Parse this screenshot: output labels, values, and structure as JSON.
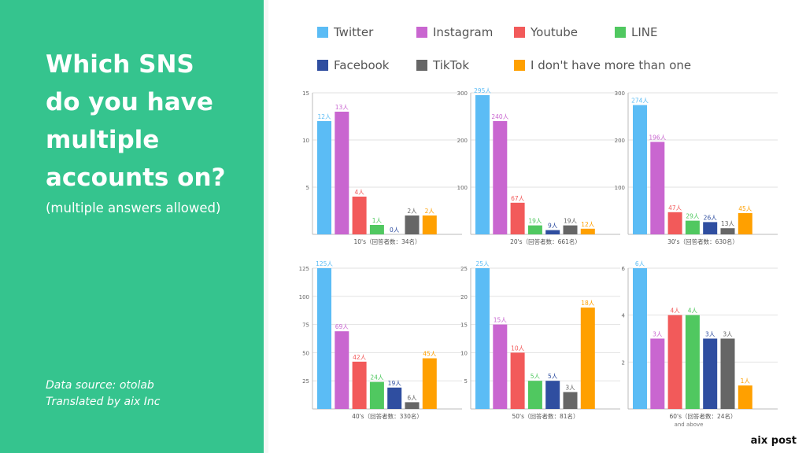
{
  "header": {
    "title_lines": [
      "Which SNS",
      "do you have",
      "multiple",
      "accounts on?"
    ],
    "subtitle": "(multiple answers allowed)",
    "source_lines": [
      "Data source: otolab",
      "Translated by aix Inc"
    ],
    "brand": "aix post"
  },
  "colors": {
    "panel_green": "#35c48e",
    "twitter": "#5bbcf5",
    "instagram": "#c966d0",
    "youtube": "#f25a5a",
    "line": "#50c860",
    "facebook": "#2f4ea0",
    "tiktok": "#666666",
    "none": "#ffa000"
  },
  "legend": [
    {
      "label": "Twitter",
      "color": "#5bbcf5"
    },
    {
      "label": "Instagram",
      "color": "#c966d0"
    },
    {
      "label": "Youtube",
      "color": "#f25a5a"
    },
    {
      "label": "LINE",
      "color": "#50c860"
    },
    {
      "label": "Facebook",
      "color": "#2f4ea0"
    },
    {
      "label": "TikTok",
      "color": "#666666"
    },
    {
      "label": "I don't have more than one",
      "color": "#ffa000"
    }
  ],
  "chart_data": [
    {
      "type": "bar",
      "categories": [
        "Twitter",
        "Instagram",
        "Youtube",
        "LINE",
        "Facebook",
        "TikTok",
        "I don't have more than one"
      ],
      "values": [
        12,
        13,
        4,
        1,
        0,
        2,
        2
      ],
      "data_labels": [
        "12人",
        "13人",
        "4人",
        "1人",
        "0人",
        "2人",
        "2人"
      ],
      "ylim": [
        0,
        15
      ],
      "yticks": [
        5,
        10,
        15
      ],
      "xlabel": "10's（回答者数：34名）",
      "subtitle": ""
    },
    {
      "type": "bar",
      "categories": [
        "Twitter",
        "Instagram",
        "Youtube",
        "LINE",
        "Facebook",
        "TikTok",
        "I don't have more than one"
      ],
      "values": [
        295,
        240,
        67,
        19,
        9,
        19,
        12
      ],
      "data_labels": [
        "295人",
        "240人",
        "67人",
        "19人",
        "9人",
        "19人",
        "12人"
      ],
      "ylim": [
        0,
        300
      ],
      "yticks": [
        100,
        200,
        300
      ],
      "xlabel": "20's（回答者数：661名）",
      "subtitle": ""
    },
    {
      "type": "bar",
      "categories": [
        "Twitter",
        "Instagram",
        "Youtube",
        "LINE",
        "Facebook",
        "TikTok",
        "I don't have more than one"
      ],
      "values": [
        274,
        196,
        47,
        29,
        26,
        13,
        45
      ],
      "data_labels": [
        "274人",
        "196人",
        "47人",
        "29人",
        "26人",
        "13人",
        "45人"
      ],
      "ylim": [
        0,
        300
      ],
      "yticks": [
        100,
        200,
        300
      ],
      "xlabel": "30's（回答者数：630名）",
      "subtitle": ""
    },
    {
      "type": "bar",
      "categories": [
        "Twitter",
        "Instagram",
        "Youtube",
        "LINE",
        "Facebook",
        "TikTok",
        "I don't have more than one"
      ],
      "values": [
        125,
        69,
        42,
        24,
        19,
        6,
        45
      ],
      "data_labels": [
        "125人",
        "69人",
        "42人",
        "24人",
        "19人",
        "6人",
        "45人"
      ],
      "ylim": [
        0,
        125
      ],
      "yticks": [
        25,
        50,
        75,
        100,
        125
      ],
      "xlabel": "40's（回答者数：330名）",
      "subtitle": ""
    },
    {
      "type": "bar",
      "categories": [
        "Twitter",
        "Instagram",
        "Youtube",
        "LINE",
        "Facebook",
        "TikTok",
        "I don't have more than one"
      ],
      "values": [
        25,
        15,
        10,
        5,
        5,
        3,
        18
      ],
      "data_labels": [
        "25人",
        "15人",
        "10人",
        "5人",
        "5人",
        "3人",
        "18人"
      ],
      "ylim": [
        0,
        25
      ],
      "yticks": [
        5,
        10,
        15,
        20,
        25
      ],
      "xlabel": "50's（回答者数：81名）",
      "subtitle": ""
    },
    {
      "type": "bar",
      "categories": [
        "Twitter",
        "Instagram",
        "Youtube",
        "LINE",
        "Facebook",
        "TikTok",
        "I don't have more than one"
      ],
      "values": [
        6,
        3,
        4,
        4,
        3,
        3,
        1
      ],
      "data_labels": [
        "6人",
        "3人",
        "4人",
        "4人",
        "3人",
        "3人",
        "1人"
      ],
      "ylim": [
        0,
        6
      ],
      "yticks": [
        2,
        4,
        6
      ],
      "xlabel": "60's（回答者数：24名）",
      "subtitle": "and above"
    }
  ]
}
